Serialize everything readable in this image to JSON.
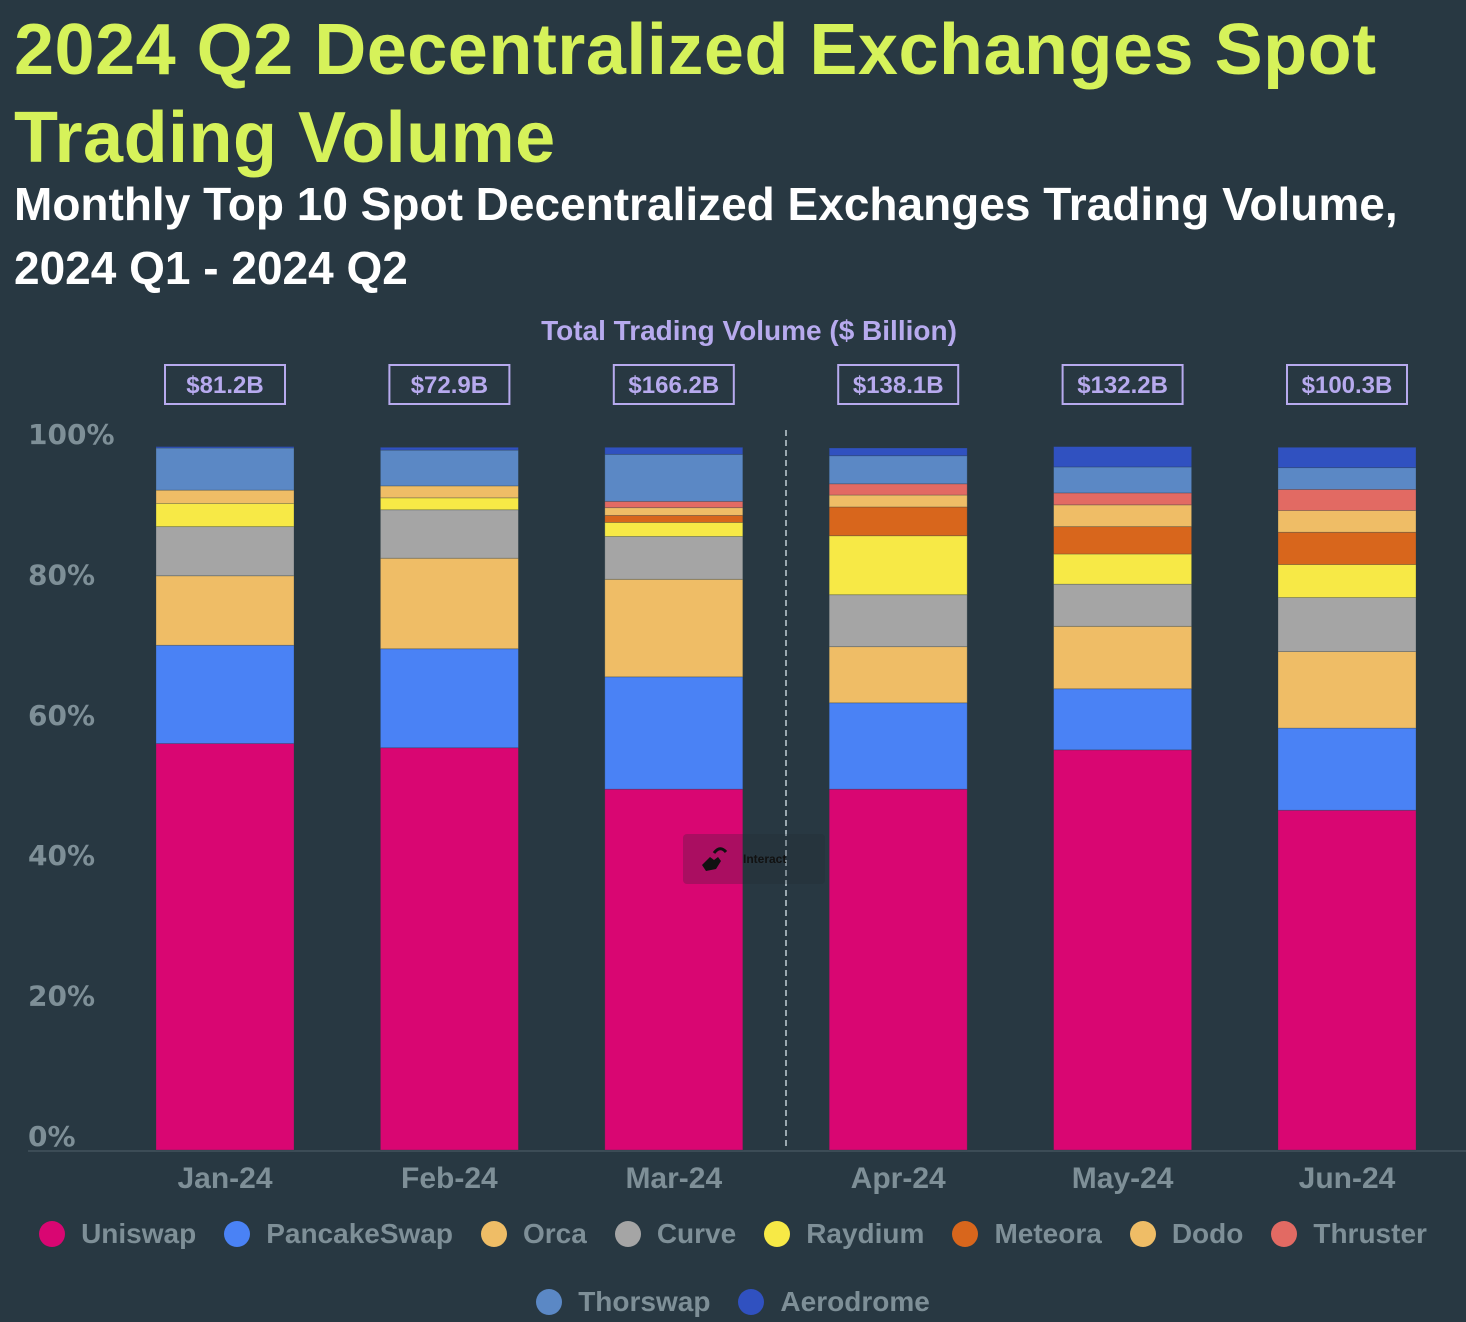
{
  "title": "2024 Q2 Decentralized Exchanges Spot Trading Volume",
  "subtitle": "Monthly Top 10 Spot Decentralized Exchanges Trading Volume, 2024 Q1 - 2024 Q2",
  "interact_label": "Interact",
  "chart_data": {
    "type": "bar",
    "stacked": true,
    "normalized": true,
    "title": "Total Trading Volume ($ Billion)",
    "xlabel": "",
    "ylabel": "",
    "ylim": [
      0,
      100
    ],
    "yticks": [
      "0%",
      "20%",
      "40%",
      "60%",
      "80%",
      "100%"
    ],
    "categories": [
      "Jan-24",
      "Feb-24",
      "Mar-24",
      "Apr-24",
      "May-24",
      "Jun-24"
    ],
    "totals": [
      "$81.2B",
      "$72.9B",
      "$166.2B",
      "$138.1B",
      "$132.2B",
      "$100.3B"
    ],
    "divider_after": "Mar-24",
    "legend_position": "bottom",
    "series": [
      {
        "name": "Uniswap",
        "color": "#d90672",
        "values": [
          57.9,
          57.3,
          51.4,
          51.4,
          57.0,
          48.4
        ]
      },
      {
        "name": "PancakeSwap",
        "color": "#4a82f5",
        "values": [
          14.0,
          14.1,
          16.0,
          12.3,
          8.7,
          11.7
        ]
      },
      {
        "name": "Orca",
        "color": "#efbd66",
        "values": [
          9.9,
          12.9,
          13.9,
          8.0,
          8.9,
          10.9
        ]
      },
      {
        "name": "Curve",
        "color": "#a5a5a5",
        "values": [
          7.0,
          6.9,
          6.1,
          7.4,
          6.0,
          7.7
        ]
      },
      {
        "name": "Raydium",
        "color": "#f7e946",
        "values": [
          3.3,
          1.7,
          2.0,
          8.4,
          4.3,
          4.7
        ]
      },
      {
        "name": "Meteora",
        "color": "#d8661c",
        "values": [
          0,
          0,
          1.0,
          4.1,
          3.9,
          4.6
        ]
      },
      {
        "name": "Dodo",
        "color": "#efbd66",
        "values": [
          1.9,
          1.7,
          1.1,
          1.7,
          3.1,
          3.1
        ]
      },
      {
        "name": "Thruster",
        "color": "#e26a63",
        "values": [
          0,
          0,
          0.9,
          1.6,
          1.7,
          3.0
        ]
      },
      {
        "name": "Thorswap",
        "color": "#5b88c5",
        "values": [
          6.0,
          5.1,
          6.7,
          4.0,
          3.7,
          3.1
        ]
      },
      {
        "name": "Aerodrome",
        "color": "#3051c0",
        "values": [
          0.2,
          0.4,
          1.0,
          1.1,
          2.9,
          2.9
        ]
      }
    ]
  }
}
